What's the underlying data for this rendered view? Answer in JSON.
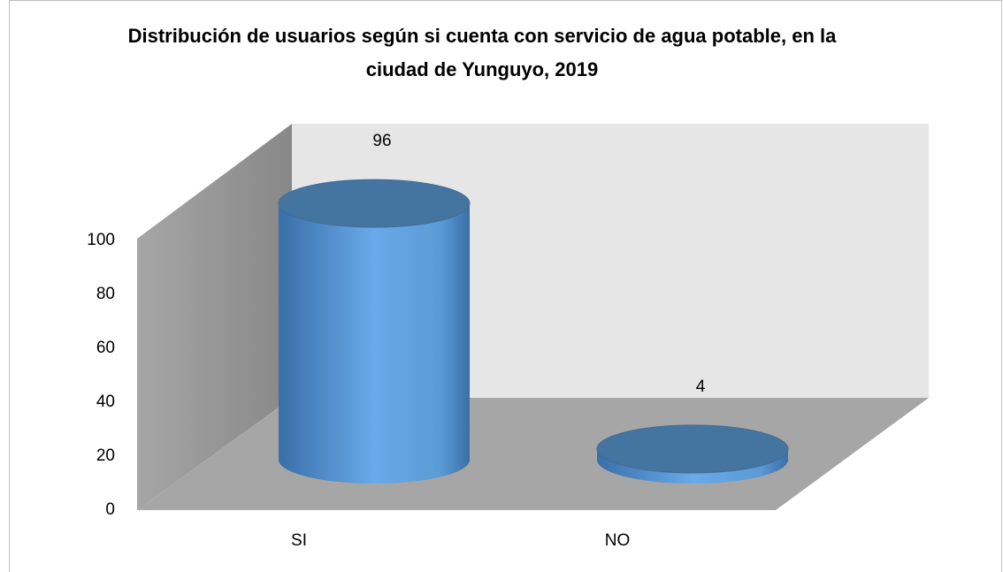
{
  "chart_data": {
    "type": "cylinder3d",
    "title": "Distribución de usuarios según si cuenta con servicio de agua potable, en la ciudad de Yunguyo, 2019",
    "categories": [
      "SI",
      "NO"
    ],
    "values": [
      96,
      4
    ],
    "color": "#5b9bd5",
    "ylim": [
      0,
      100
    ],
    "yticks": [
      0,
      20,
      40,
      60,
      80,
      100
    ]
  }
}
